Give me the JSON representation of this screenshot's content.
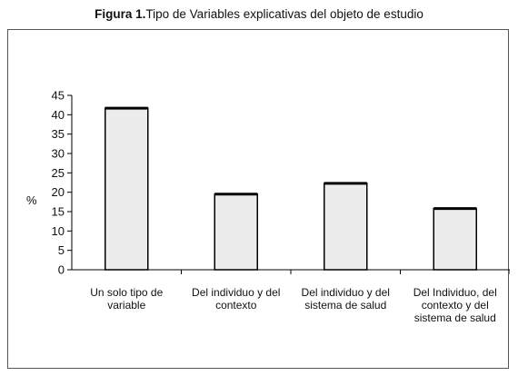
{
  "caption": {
    "figure_number": "Figura 1.",
    "title": "Tipo de Variables explicativas del objeto de estudio"
  },
  "chart_data": {
    "type": "bar",
    "title": "Figura 1.Tipo de Variables explicativas del objeto de estudio",
    "categories": [
      "Un solo tipo de variable",
      "Del individuo y del contexto",
      "Del individuo y del sistema de salud",
      "Del Individuo, del contexto y del sistema de salud"
    ],
    "values": [
      41.7,
      19.5,
      22.3,
      15.8
    ],
    "xlabel": "",
    "ylabel": "%",
    "ylim": [
      0,
      45
    ],
    "yticks": [
      "0",
      "5",
      "10",
      "15",
      "20",
      "25",
      "30",
      "35",
      "40",
      "45"
    ],
    "grid": false,
    "legend": "none",
    "colors": {
      "bar_fill": "#ececec",
      "bar_stroke": "#000000",
      "axis": "#000000"
    }
  }
}
